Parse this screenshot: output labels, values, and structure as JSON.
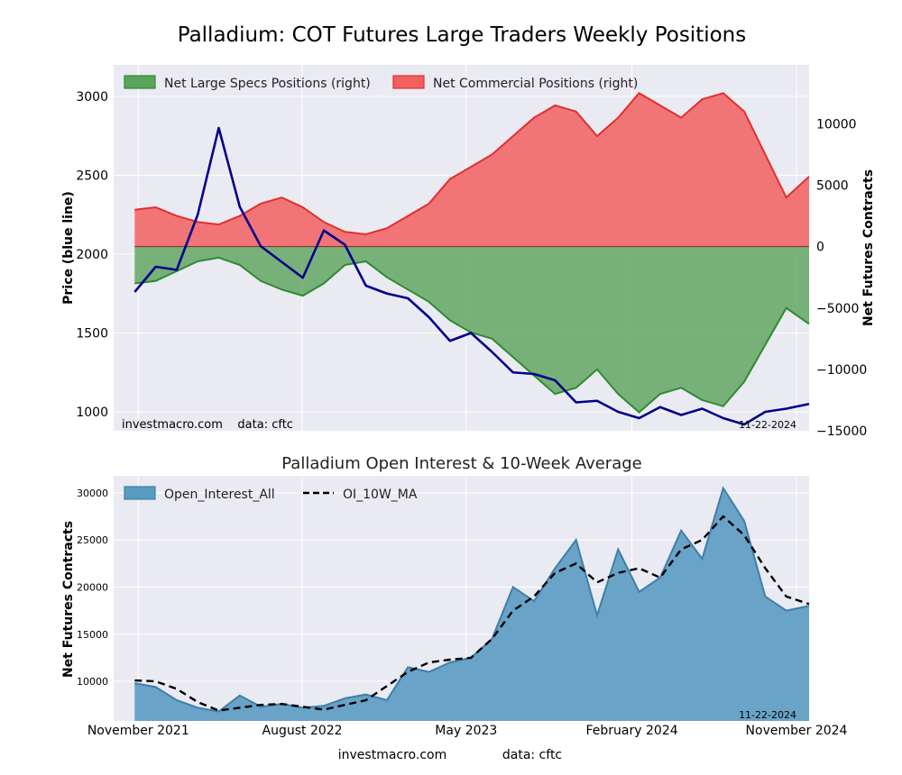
{
  "figure": {
    "title": "Palladium: COT Futures Large Traders Weekly Positions",
    "footer_left": "investmacro.com",
    "footer_right": "data: cftc"
  },
  "colors": {
    "price_line": "#00008b",
    "specs_fill": "#5aa35a",
    "specs_line": "#2e8b2e",
    "comm_fill": "#f26060",
    "comm_line": "#e03030",
    "oi_fill": "#5b9bc2",
    "oi_line": "#3f7fa8",
    "ma_line": "#000000",
    "panel_bg": "#eaeaf2",
    "grid": "#ffffff"
  },
  "chart_data": [
    {
      "type": "line",
      "ylabel": "Price (blue line)",
      "y2label": "Net Futures Contracts",
      "ylim": [
        880,
        3200
      ],
      "y2lim": [
        -15000,
        14800
      ],
      "yticks": [
        1000,
        1500,
        2000,
        2500,
        3000
      ],
      "y2ticks": [
        -15000,
        -10000,
        -5000,
        0,
        5000,
        10000
      ],
      "grid": true,
      "legend_position": "top-left",
      "watermark": "investmacro.com    data: cftc",
      "date_label": "11-22-2024",
      "x_start": "2021-09-21",
      "x_end": "2024-11-22",
      "x": [
        "2021-10-26",
        "2021-11-30",
        "2022-01-04",
        "2022-02-08",
        "2022-03-15",
        "2022-04-19",
        "2022-05-24",
        "2022-06-28",
        "2022-08-02",
        "2022-09-06",
        "2022-10-11",
        "2022-11-15",
        "2022-12-20",
        "2023-01-24",
        "2023-02-28",
        "2023-04-04",
        "2023-05-09",
        "2023-06-13",
        "2023-07-18",
        "2023-08-22",
        "2023-09-26",
        "2023-10-31",
        "2023-12-05",
        "2024-01-09",
        "2024-02-13",
        "2024-03-19",
        "2024-04-23",
        "2024-05-28",
        "2024-07-02",
        "2024-08-06",
        "2024-09-10",
        "2024-10-15",
        "2024-11-22"
      ],
      "series": [
        {
          "name": "Price",
          "axis": "left",
          "style": "line",
          "values": [
            1760,
            1920,
            1900,
            2250,
            2800,
            2300,
            2050,
            1950,
            1850,
            2150,
            2060,
            1800,
            1750,
            1720,
            1600,
            1450,
            1500,
            1380,
            1250,
            1240,
            1200,
            1060,
            1070,
            1000,
            960,
            1030,
            980,
            1020,
            960,
            920,
            1000,
            1020,
            1050
          ]
        },
        {
          "name": "Net Large Specs Positions (right)",
          "axis": "right",
          "style": "area",
          "values": [
            -3000,
            -2800,
            -2000,
            -1200,
            -900,
            -1500,
            -2800,
            -3500,
            -4000,
            -3000,
            -1500,
            -1200,
            -2500,
            -3500,
            -4500,
            -6000,
            -7000,
            -7500,
            -9000,
            -10500,
            -12000,
            -11500,
            -10000,
            -12000,
            -13500,
            -12000,
            -11500,
            -12500,
            -13000,
            -11000,
            -8000,
            -5000,
            -6300
          ]
        },
        {
          "name": "Net Commercial Positions (right)",
          "axis": "right",
          "style": "area",
          "values": [
            3000,
            3200,
            2500,
            2000,
            1800,
            2500,
            3500,
            4000,
            3200,
            2000,
            1200,
            1000,
            1500,
            2500,
            3500,
            5500,
            6500,
            7500,
            9000,
            10500,
            11500,
            11000,
            9000,
            10500,
            12500,
            11500,
            10500,
            12000,
            12500,
            11000,
            7500,
            4000,
            5700
          ]
        }
      ]
    },
    {
      "type": "area",
      "title": "Palladium Open Interest & 10-Week Average",
      "ylabel": "Net Futures Contracts",
      "ylim": [
        5800,
        31800
      ],
      "yticks": [
        10000,
        15000,
        20000,
        25000,
        30000
      ],
      "xticks": [
        "November 2021",
        "August 2022",
        "May 2023",
        "February 2024",
        "November 2024"
      ],
      "xtick_dates": [
        "2021-11-01",
        "2022-08-01",
        "2023-05-01",
        "2024-02-01",
        "2024-11-01"
      ],
      "grid": true,
      "legend_position": "top-left",
      "date_label": "11-22-2024",
      "x": [
        "2021-10-26",
        "2021-11-30",
        "2022-01-04",
        "2022-02-08",
        "2022-03-15",
        "2022-04-19",
        "2022-05-24",
        "2022-06-28",
        "2022-08-02",
        "2022-09-06",
        "2022-10-11",
        "2022-11-15",
        "2022-12-20",
        "2023-01-24",
        "2023-02-28",
        "2023-04-04",
        "2023-05-09",
        "2023-06-13",
        "2023-07-18",
        "2023-08-22",
        "2023-09-26",
        "2023-10-31",
        "2023-12-05",
        "2024-01-09",
        "2024-02-13",
        "2024-03-19",
        "2024-04-23",
        "2024-05-28",
        "2024-07-02",
        "2024-08-06",
        "2024-09-10",
        "2024-10-15",
        "2024-11-22"
      ],
      "series": [
        {
          "name": "Open_Interest_All",
          "style": "area",
          "values": [
            9800,
            9400,
            8000,
            7200,
            6800,
            8500,
            7300,
            7600,
            7200,
            7400,
            8200,
            8600,
            8000,
            11500,
            11000,
            12000,
            12500,
            14500,
            20000,
            18500,
            22000,
            25000,
            17000,
            24000,
            19500,
            21000,
            26000,
            23000,
            30500,
            27000,
            19000,
            17500,
            18000
          ]
        },
        {
          "name": "OI_10W_MA",
          "style": "dashed",
          "values": [
            10100,
            10000,
            9200,
            7800,
            6900,
            7200,
            7500,
            7600,
            7300,
            7000,
            7500,
            8000,
            9500,
            11000,
            12000,
            12300,
            12500,
            14500,
            17500,
            19000,
            21500,
            22500,
            20500,
            21500,
            22000,
            21000,
            24000,
            25000,
            27500,
            25500,
            22000,
            19000,
            18200
          ]
        }
      ]
    }
  ]
}
